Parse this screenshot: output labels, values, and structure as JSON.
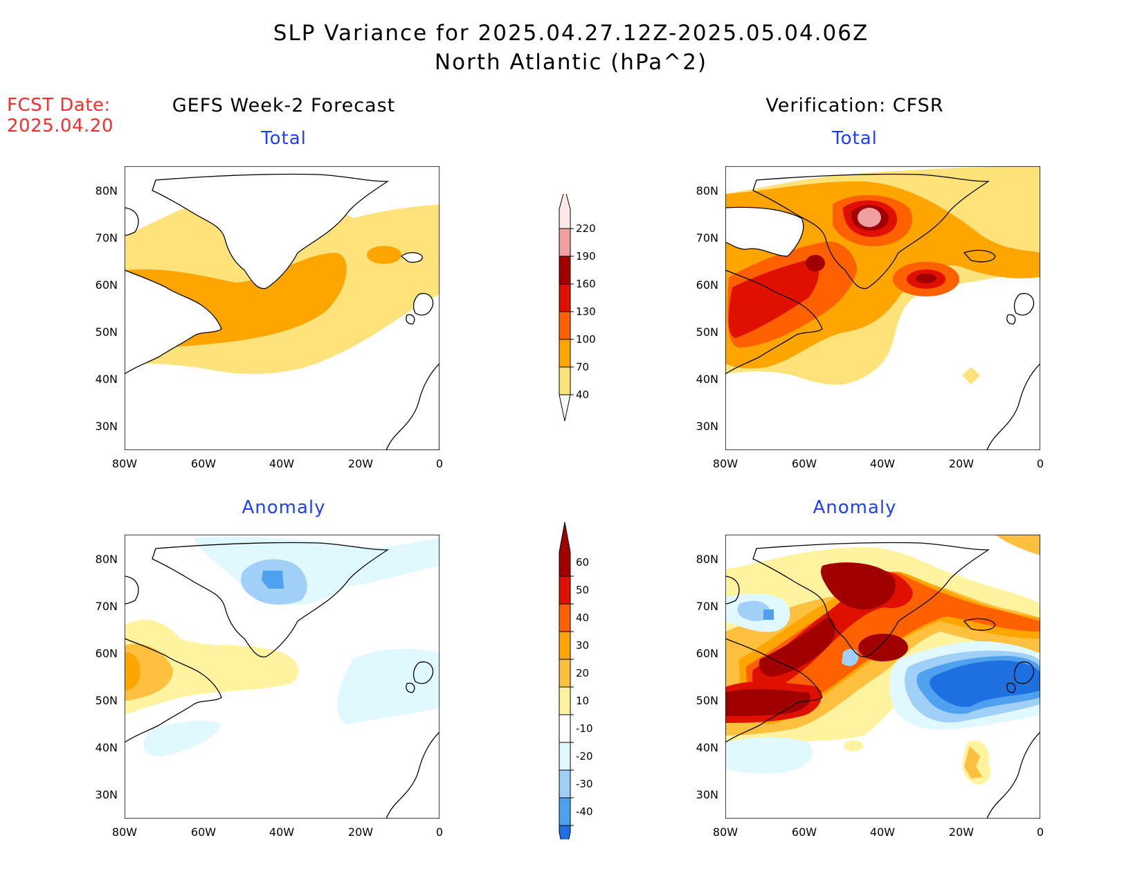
{
  "title": {
    "line1": "SLP Variance for 2025.04.27.12Z-2025.05.04.06Z",
    "line2": "North Atlantic (hPa^2)"
  },
  "forecast": {
    "label": "FCST Date:",
    "date": "2025.04.20"
  },
  "columns": {
    "left": "GEFS Week-2 Forecast",
    "right": "Verification: CFSR"
  },
  "panels": {
    "top_left": "Total",
    "top_right": "Total",
    "bottom_left": "Anomaly",
    "bottom_right": "Anomaly"
  },
  "axes": {
    "lat_labels": [
      "80N",
      "70N",
      "60N",
      "50N",
      "40N",
      "30N"
    ],
    "lon_labels": [
      "80W",
      "60W",
      "40W",
      "20W",
      "0"
    ]
  },
  "colorbars": {
    "total": {
      "levels": [
        "40",
        "70",
        "100",
        "130",
        "160",
        "190",
        "220"
      ],
      "colors": [
        "#ffe27a",
        "#ffa500",
        "#ff6000",
        "#e01000",
        "#a00000",
        "#f0a0a0",
        "#fde8e8"
      ]
    },
    "anomaly": {
      "levels": [
        "60",
        "50",
        "40",
        "30",
        "20",
        "10",
        "-10",
        "-20",
        "-30",
        "-40"
      ],
      "colors": [
        "#a00000",
        "#e01000",
        "#ff6000",
        "#ffa500",
        "#ffc040",
        "#fff3a0",
        "#ffffff",
        "#e0f8ff",
        "#a0d0f8",
        "#50a0f0",
        "#1e70e0"
      ]
    }
  },
  "colors": {
    "title_text": "#000000",
    "fcst_text": "#ff2a2a",
    "subtitle_text": "#1f3fff"
  }
}
